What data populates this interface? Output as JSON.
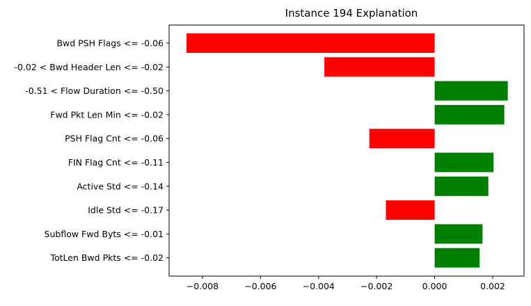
{
  "chart_data": {
    "type": "bar",
    "orientation": "horizontal",
    "title": "Instance 194 Explanation",
    "xlabel": "",
    "ylabel": "",
    "categories": [
      "Bwd PSH Flags <= -0.06",
      "-0.02 < Bwd Header Len <= -0.02",
      "-0.51 < Flow Duration <= -0.50",
      "Fwd Pkt Len Min <= -0.02",
      "PSH Flag Cnt <= -0.06",
      "FIN Flag Cnt <= -0.11",
      "Active Std <= -0.14",
      "Idle Std <= -0.17",
      "Subflow Fwd Byts <= -0.01",
      "TotLen Bwd Pkts <= -0.02"
    ],
    "values": [
      -0.00855,
      -0.0038,
      0.00252,
      0.0024,
      -0.00225,
      0.00203,
      0.00185,
      -0.00168,
      0.00165,
      0.00155
    ],
    "xlim": [
      -0.00915,
      0.00308
    ],
    "xticks": [
      -0.008,
      -0.006,
      -0.004,
      -0.002,
      0.0,
      0.002
    ],
    "xtick_labels": [
      "−0.008",
      "−0.006",
      "−0.004",
      "−0.002",
      "0.000",
      "0.002"
    ],
    "grid": false,
    "colors": {
      "positive": "#008000",
      "negative": "#ff0000",
      "axis": "#000000"
    }
  }
}
